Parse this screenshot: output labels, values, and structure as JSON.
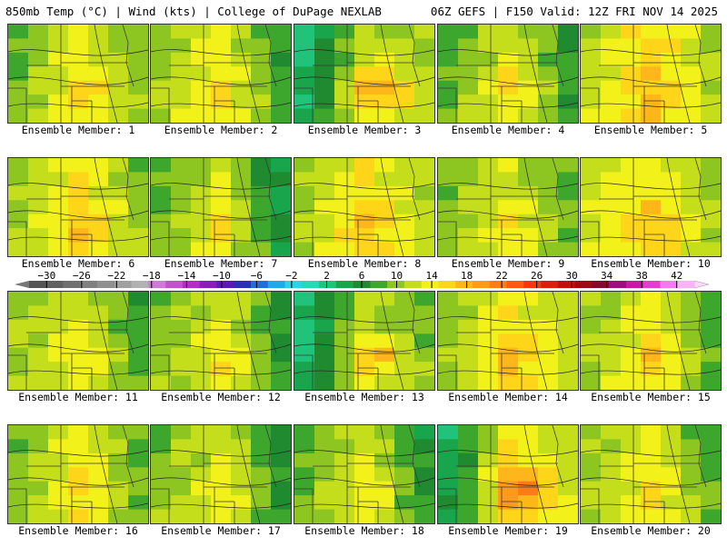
{
  "header": {
    "left": "850mb Temp (°C) | Wind (kts) | College of DuPage NEXLAB",
    "right": "06Z GEFS | F150 Valid: 12Z FRI NOV 14 2025"
  },
  "member_label_prefix": "Ensemble Member: ",
  "members": [
    {
      "n": "1",
      "west": 10,
      "center": 16,
      "east": 11,
      "peak": 18
    },
    {
      "n": "2",
      "west": 12,
      "center": 16,
      "east": 8,
      "peak": 17
    },
    {
      "n": "3",
      "west": 3,
      "center": 14,
      "east": 13,
      "peak": 22
    },
    {
      "n": "4",
      "west": 10,
      "center": 15,
      "east": 8,
      "peak": 18
    },
    {
      "n": "5",
      "west": 13,
      "center": 18,
      "east": 12,
      "peak": 20
    },
    {
      "n": "6",
      "west": 12,
      "center": 17,
      "east": 11,
      "peak": 19
    },
    {
      "n": "7",
      "west": 10,
      "center": 15,
      "east": 5,
      "peak": 17
    },
    {
      "n": "8",
      "west": 12,
      "center": 17,
      "east": 13,
      "peak": 19
    },
    {
      "n": "9",
      "west": 11,
      "center": 15,
      "east": 10,
      "peak": 17
    },
    {
      "n": "10",
      "west": 14,
      "center": 17,
      "east": 12,
      "peak": 19
    },
    {
      "n": "11",
      "west": 12,
      "center": 15,
      "east": 9,
      "peak": 17
    },
    {
      "n": "12",
      "west": 11,
      "center": 15,
      "east": 8,
      "peak": 17
    },
    {
      "n": "13",
      "west": 3,
      "center": 14,
      "east": 11,
      "peak": 20
    },
    {
      "n": "14",
      "west": 11,
      "center": 17,
      "east": 13,
      "peak": 19
    },
    {
      "n": "15",
      "west": 12,
      "center": 16,
      "east": 9,
      "peak": 19
    },
    {
      "n": "16",
      "west": 11,
      "center": 16,
      "east": 10,
      "peak": 18
    },
    {
      "n": "17",
      "west": 11,
      "center": 15,
      "east": 7,
      "peak": 17
    },
    {
      "n": "18",
      "west": 10,
      "center": 15,
      "east": 7,
      "peak": 17
    },
    {
      "n": "19",
      "west": 4,
      "center": 17,
      "east": 14,
      "peak": 24
    },
    {
      "n": "20",
      "west": 12,
      "center": 16,
      "east": 9,
      "peak": 18
    }
  ],
  "colorbar": {
    "min": -32,
    "max": 44,
    "step": 2,
    "tick_labels": [
      "-30",
      "-26",
      "-22",
      "-18",
      "-14",
      "-10",
      "-6",
      "-2",
      "2",
      "6",
      "10",
      "14",
      "18",
      "22",
      "26",
      "30",
      "34",
      "38",
      "42"
    ],
    "colors": [
      "#555555",
      "#606060",
      "#707070",
      "#808080",
      "#909090",
      "#a0a0a0",
      "#b2b2b2",
      "#d07ad8",
      "#c452d0",
      "#b32ec4",
      "#8e1cb8",
      "#5c1ab4",
      "#2d2fb6",
      "#1f6fd8",
      "#22a8e8",
      "#2ed3e3",
      "#28d8b4",
      "#21c37a",
      "#18a54b",
      "#1f8a2f",
      "#3da62c",
      "#8dc621",
      "#c4de1c",
      "#f2f21a",
      "#ffd51a",
      "#ffb61a",
      "#ff9a1a",
      "#ff7b15",
      "#ff5a10",
      "#f2380c",
      "#de1e0a",
      "#c40e0e",
      "#9e0a16",
      "#850a2c",
      "#a0107a",
      "#c81aa8",
      "#e43cd0",
      "#f47aee",
      "#f8b4f4"
    ]
  }
}
